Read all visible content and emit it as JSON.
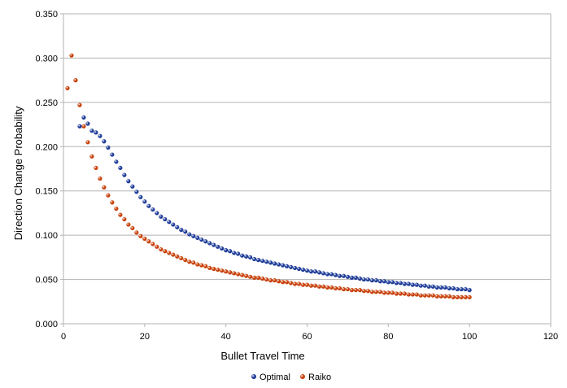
{
  "chart_data": {
    "type": "scatter",
    "title": "",
    "xlabel": "Bullet Travel Time",
    "ylabel": "Direction Change Probability",
    "xlim": [
      0,
      120
    ],
    "ylim": [
      0,
      0.35
    ],
    "x_ticks": [
      "0",
      "20",
      "40",
      "60",
      "80",
      "100",
      "120"
    ],
    "y_ticks": [
      "0.000",
      "0.050",
      "0.100",
      "0.150",
      "0.200",
      "0.250",
      "0.300",
      "0.350"
    ],
    "grid": "horizontal",
    "legend_position": "bottom",
    "series": [
      {
        "name": "Optimal",
        "color": "#1f3d99",
        "x": [
          4,
          5,
          6,
          7,
          8,
          9,
          10,
          11,
          12,
          13,
          14,
          15,
          16,
          17,
          18,
          19,
          20,
          21,
          22,
          23,
          24,
          25,
          26,
          27,
          28,
          29,
          30,
          31,
          32,
          33,
          34,
          35,
          36,
          37,
          38,
          39,
          40,
          41,
          42,
          43,
          44,
          45,
          46,
          47,
          48,
          49,
          50,
          51,
          52,
          53,
          54,
          55,
          56,
          57,
          58,
          59,
          60,
          61,
          62,
          63,
          64,
          65,
          66,
          67,
          68,
          69,
          70,
          71,
          72,
          73,
          74,
          75,
          76,
          77,
          78,
          79,
          80,
          81,
          82,
          83,
          84,
          85,
          86,
          87,
          88,
          89,
          90,
          91,
          92,
          93,
          94,
          95,
          96,
          97,
          98,
          99,
          100
        ],
        "y": [
          0.223,
          0.233,
          0.226,
          0.218,
          0.216,
          0.212,
          0.206,
          0.199,
          0.191,
          0.183,
          0.176,
          0.168,
          0.161,
          0.155,
          0.149,
          0.143,
          0.138,
          0.133,
          0.129,
          0.125,
          0.121,
          0.118,
          0.115,
          0.112,
          0.109,
          0.106,
          0.104,
          0.101,
          0.099,
          0.097,
          0.095,
          0.093,
          0.091,
          0.089,
          0.087,
          0.085,
          0.083,
          0.082,
          0.08,
          0.079,
          0.077,
          0.076,
          0.075,
          0.073,
          0.072,
          0.071,
          0.07,
          0.069,
          0.068,
          0.067,
          0.066,
          0.065,
          0.064,
          0.063,
          0.062,
          0.061,
          0.06,
          0.059,
          0.059,
          0.058,
          0.057,
          0.056,
          0.056,
          0.055,
          0.054,
          0.054,
          0.053,
          0.052,
          0.052,
          0.051,
          0.05,
          0.05,
          0.049,
          0.049,
          0.048,
          0.048,
          0.047,
          0.047,
          0.046,
          0.046,
          0.045,
          0.045,
          0.044,
          0.044,
          0.043,
          0.043,
          0.042,
          0.042,
          0.041,
          0.041,
          0.041,
          0.04,
          0.04,
          0.039,
          0.039,
          0.039,
          0.038
        ]
      },
      {
        "name": "Raiko",
        "color": "#c8410b",
        "x": [
          1,
          2,
          3,
          4,
          5,
          6,
          7,
          8,
          9,
          10,
          11,
          12,
          13,
          14,
          15,
          16,
          17,
          18,
          19,
          20,
          21,
          22,
          23,
          24,
          25,
          26,
          27,
          28,
          29,
          30,
          31,
          32,
          33,
          34,
          35,
          36,
          37,
          38,
          39,
          40,
          41,
          42,
          43,
          44,
          45,
          46,
          47,
          48,
          49,
          50,
          51,
          52,
          53,
          54,
          55,
          56,
          57,
          58,
          59,
          60,
          61,
          62,
          63,
          64,
          65,
          66,
          67,
          68,
          69,
          70,
          71,
          72,
          73,
          74,
          75,
          76,
          77,
          78,
          79,
          80,
          81,
          82,
          83,
          84,
          85,
          86,
          87,
          88,
          89,
          90,
          91,
          92,
          93,
          94,
          95,
          96,
          97,
          98,
          99,
          100
        ],
        "y": [
          0.266,
          0.303,
          0.275,
          0.247,
          0.223,
          0.205,
          0.189,
          0.176,
          0.164,
          0.154,
          0.145,
          0.137,
          0.13,
          0.123,
          0.118,
          0.112,
          0.108,
          0.103,
          0.099,
          0.096,
          0.093,
          0.09,
          0.087,
          0.084,
          0.082,
          0.08,
          0.078,
          0.076,
          0.074,
          0.072,
          0.07,
          0.069,
          0.067,
          0.066,
          0.065,
          0.063,
          0.062,
          0.061,
          0.06,
          0.059,
          0.058,
          0.057,
          0.056,
          0.055,
          0.054,
          0.053,
          0.052,
          0.052,
          0.051,
          0.05,
          0.049,
          0.049,
          0.048,
          0.047,
          0.047,
          0.046,
          0.045,
          0.045,
          0.044,
          0.044,
          0.043,
          0.043,
          0.042,
          0.042,
          0.041,
          0.041,
          0.04,
          0.04,
          0.039,
          0.039,
          0.038,
          0.038,
          0.038,
          0.037,
          0.037,
          0.036,
          0.036,
          0.036,
          0.035,
          0.035,
          0.035,
          0.034,
          0.034,
          0.034,
          0.033,
          0.033,
          0.033,
          0.032,
          0.032,
          0.032,
          0.032,
          0.031,
          0.031,
          0.031,
          0.031,
          0.03,
          0.03,
          0.03,
          0.03,
          0.03
        ]
      }
    ]
  }
}
